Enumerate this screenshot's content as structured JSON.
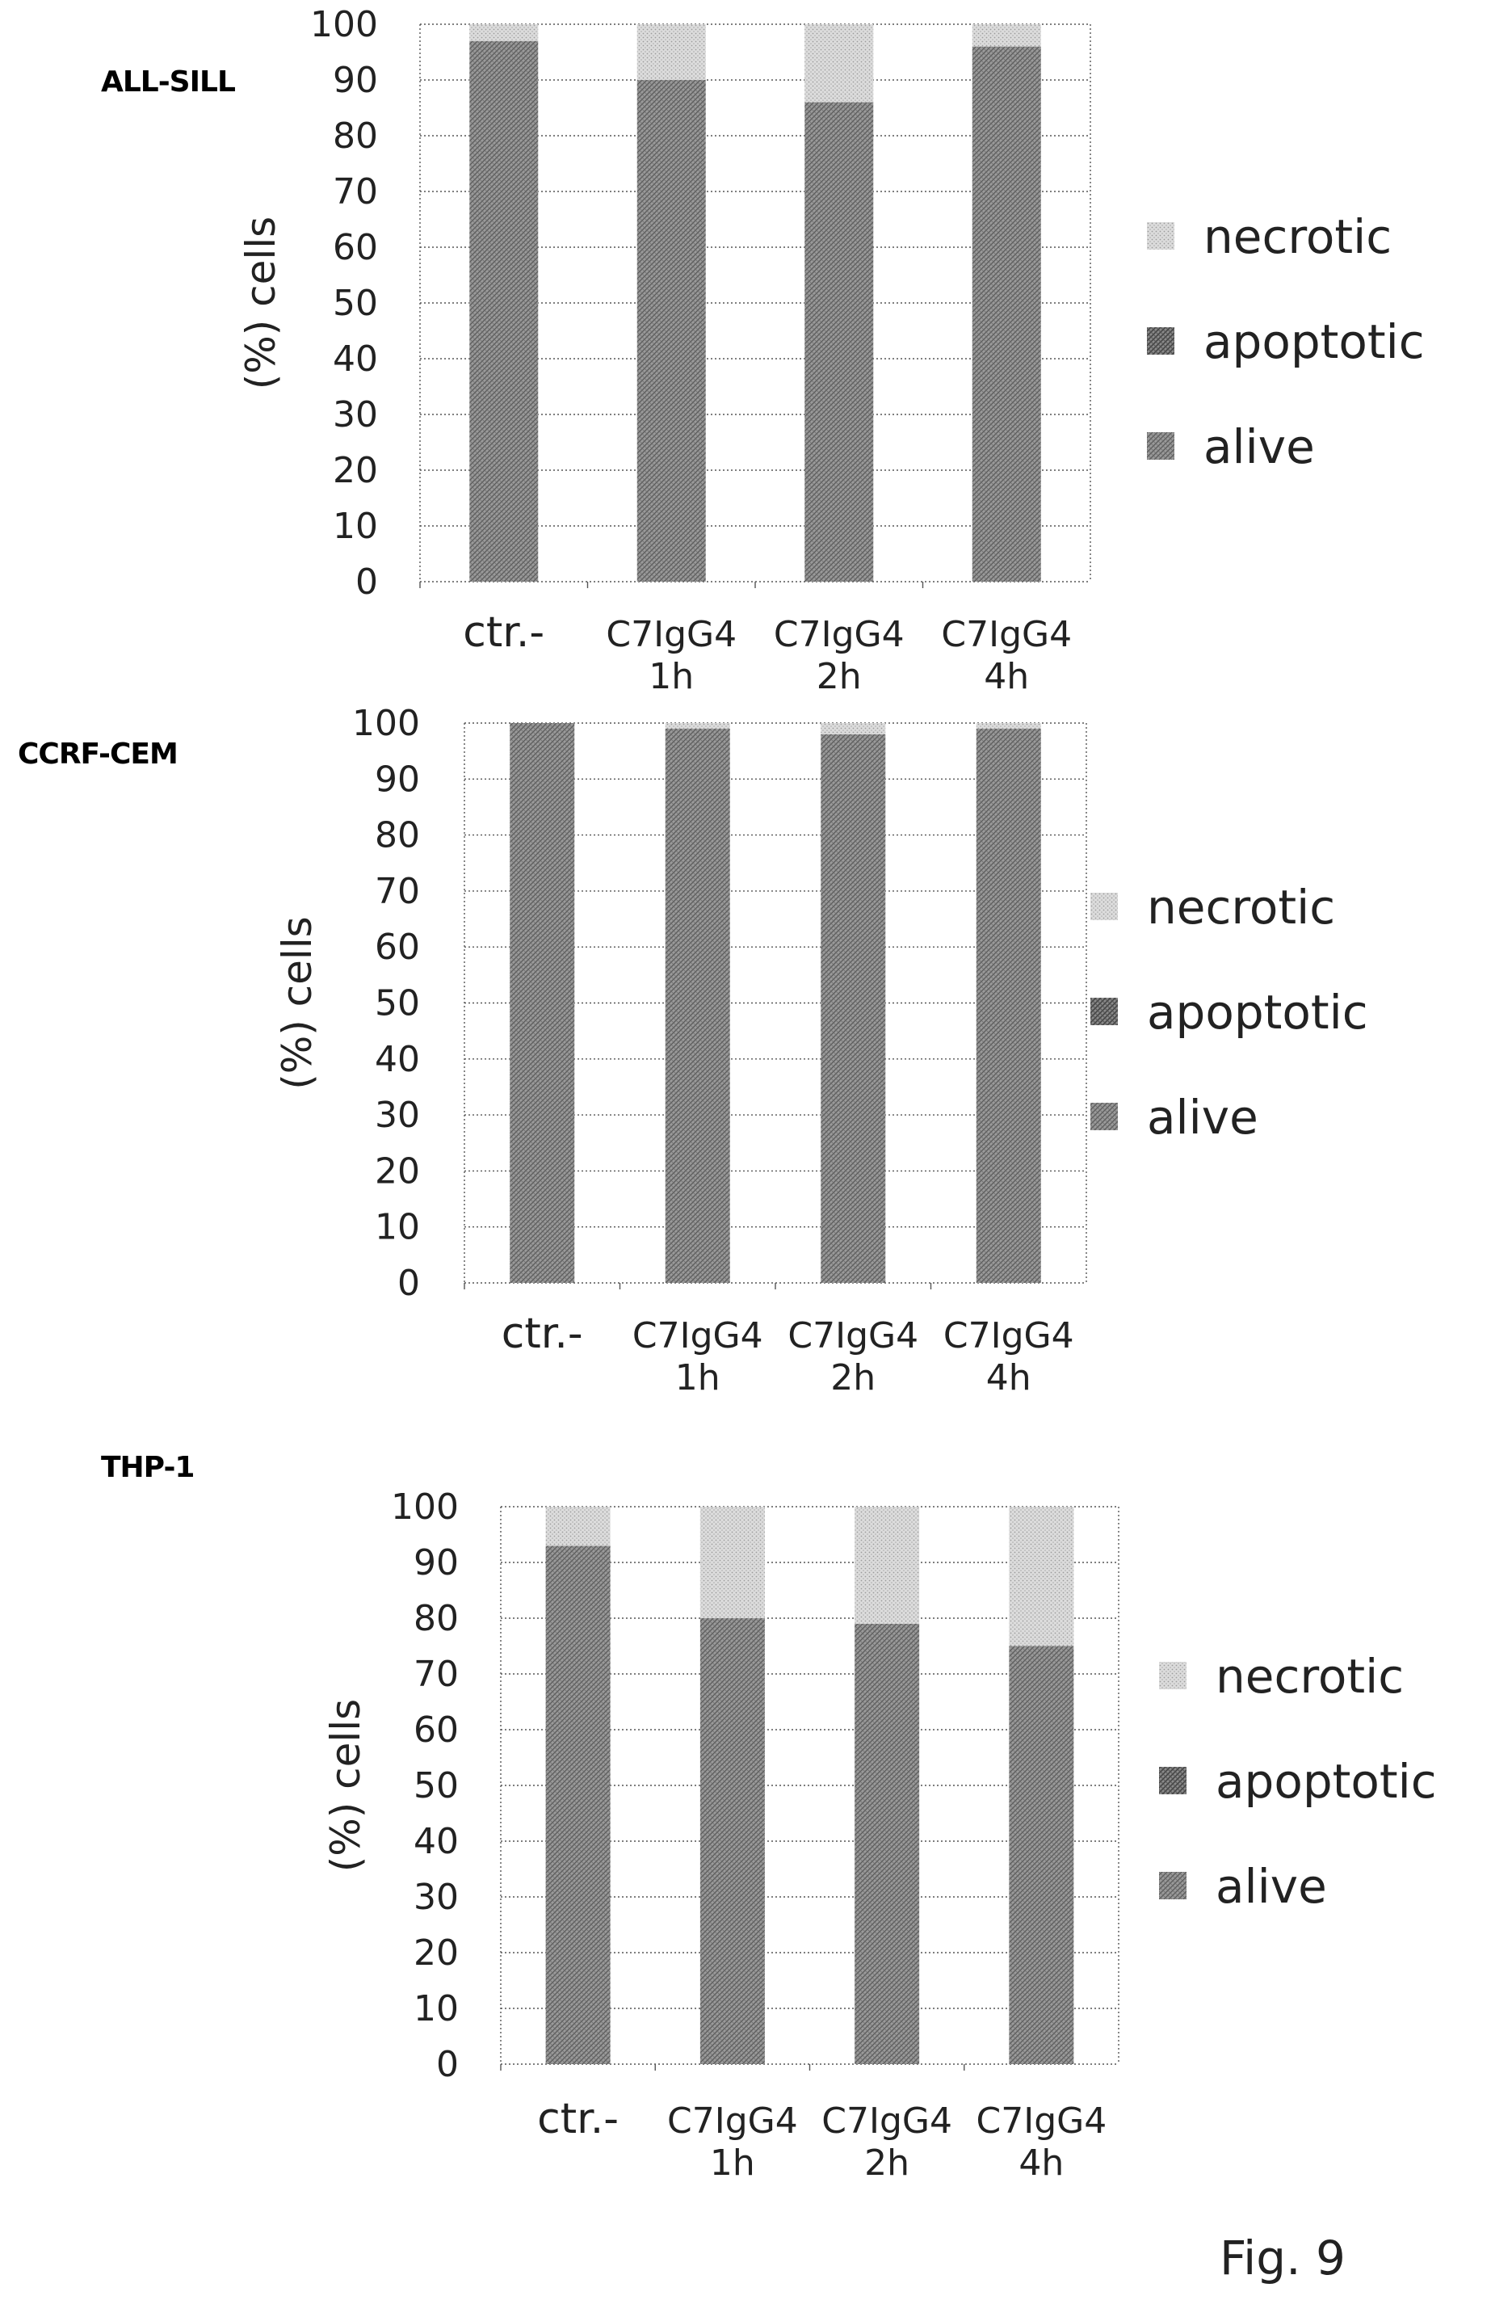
{
  "figure_label": "Fig. 9",
  "colors": {
    "alive": "#8f8f8f",
    "apoptotic": "#7a7a7a",
    "necrotic": "#d0d0d0",
    "grid": "#555555"
  },
  "chart_data": [
    {
      "type": "bar",
      "stacked": true,
      "title": "ALL-SILL",
      "ylabel": "(%) cells",
      "xlabel": "",
      "ylim": [
        0,
        100
      ],
      "yticks": [
        "0",
        "10",
        "20",
        "30",
        "40",
        "50",
        "60",
        "70",
        "80",
        "90",
        "100"
      ],
      "categories": [
        [
          "ctr.-"
        ],
        [
          "C7IgG4",
          "1h"
        ],
        [
          "C7IgG4",
          "2h"
        ],
        [
          "C7IgG4",
          "4h"
        ]
      ],
      "series": [
        {
          "name": "alive",
          "values": [
            97,
            90,
            86,
            96
          ]
        },
        {
          "name": "apoptotic",
          "values": [
            0,
            0,
            0,
            0
          ]
        },
        {
          "name": "necrotic",
          "values": [
            3,
            10,
            14,
            4
          ]
        }
      ],
      "legend_order": [
        "necrotic",
        "apoptotic",
        "alive"
      ],
      "legend": "right",
      "grid": true
    },
    {
      "type": "bar",
      "stacked": true,
      "title": "CCRF-CEM",
      "ylabel": "(%) cells",
      "xlabel": "",
      "ylim": [
        0,
        100
      ],
      "yticks": [
        "0",
        "10",
        "20",
        "30",
        "40",
        "50",
        "60",
        "70",
        "80",
        "90",
        "100"
      ],
      "categories": [
        [
          "ctr.-"
        ],
        [
          "C7IgG4",
          "1h"
        ],
        [
          "C7IgG4",
          "2h"
        ],
        [
          "C7IgG4",
          "4h"
        ]
      ],
      "series": [
        {
          "name": "alive",
          "values": [
            100,
            99,
            98,
            99
          ]
        },
        {
          "name": "apoptotic",
          "values": [
            0,
            0,
            0,
            0
          ]
        },
        {
          "name": "necrotic",
          "values": [
            0,
            1,
            2,
            1
          ]
        }
      ],
      "legend_order": [
        "necrotic",
        "apoptotic",
        "alive"
      ],
      "legend": "right",
      "grid": true
    },
    {
      "type": "bar",
      "stacked": true,
      "title": "THP-1",
      "ylabel": "(%) cells",
      "xlabel": "",
      "ylim": [
        0,
        100
      ],
      "yticks": [
        "0",
        "10",
        "20",
        "30",
        "40",
        "50",
        "60",
        "70",
        "80",
        "90",
        "100"
      ],
      "categories": [
        [
          "ctr.-"
        ],
        [
          "C7IgG4",
          "1h"
        ],
        [
          "C7IgG4",
          "2h"
        ],
        [
          "C7IgG4",
          "4h"
        ]
      ],
      "series": [
        {
          "name": "alive",
          "values": [
            93,
            80,
            79,
            75
          ]
        },
        {
          "name": "apoptotic",
          "values": [
            0,
            0,
            0,
            0
          ]
        },
        {
          "name": "necrotic",
          "values": [
            7,
            20,
            21,
            25
          ]
        }
      ],
      "legend_order": [
        "necrotic",
        "apoptotic",
        "alive"
      ],
      "legend": "right",
      "grid": true
    }
  ]
}
